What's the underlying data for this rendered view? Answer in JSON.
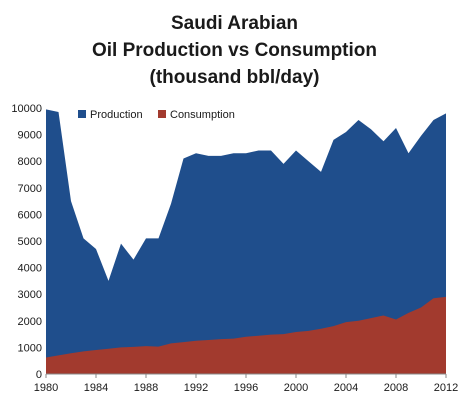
{
  "chart_data": {
    "type": "area",
    "title_lines": [
      "Saudi Arabian",
      "Oil Production vs Consumption",
      "(thousand bbl/day)"
    ],
    "xlabel": "",
    "ylabel": "",
    "xlim": [
      1980,
      2012
    ],
    "ylim": [
      0,
      10000
    ],
    "x_ticks": [
      "1980",
      "1984",
      "1988",
      "1992",
      "1996",
      "2000",
      "2004",
      "2008",
      "2012"
    ],
    "y_ticks": [
      "0",
      "1000",
      "2000",
      "3000",
      "4000",
      "5000",
      "6000",
      "7000",
      "8000",
      "9000",
      "10000"
    ],
    "grid": false,
    "legend_position": "top-left",
    "x": [
      1980,
      1981,
      1982,
      1983,
      1984,
      1985,
      1986,
      1987,
      1988,
      1989,
      1990,
      1991,
      1992,
      1993,
      1994,
      1995,
      1996,
      1997,
      1998,
      1999,
      2000,
      2001,
      2002,
      2003,
      2004,
      2005,
      2006,
      2007,
      2008,
      2009,
      2010,
      2011,
      2012
    ],
    "series": [
      {
        "name": "Production",
        "color": "#1f4e8c",
        "values": [
          9950,
          9850,
          6500,
          5100,
          4700,
          3500,
          4900,
          4300,
          5100,
          5100,
          6400,
          8100,
          8300,
          8200,
          8200,
          8300,
          8300,
          8400,
          8400,
          7900,
          8400,
          8000,
          7600,
          8800,
          9100,
          9550,
          9200,
          8750,
          9250,
          8300,
          8950,
          9550,
          9800
        ]
      },
      {
        "name": "Consumption",
        "color": "#a23a2e",
        "values": [
          620,
          700,
          780,
          850,
          900,
          950,
          1000,
          1020,
          1050,
          1030,
          1150,
          1200,
          1250,
          1280,
          1310,
          1330,
          1400,
          1440,
          1480,
          1500,
          1580,
          1620,
          1700,
          1800,
          1950,
          2000,
          2100,
          2200,
          2050,
          2300,
          2500,
          2850,
          2900
        ]
      }
    ]
  }
}
